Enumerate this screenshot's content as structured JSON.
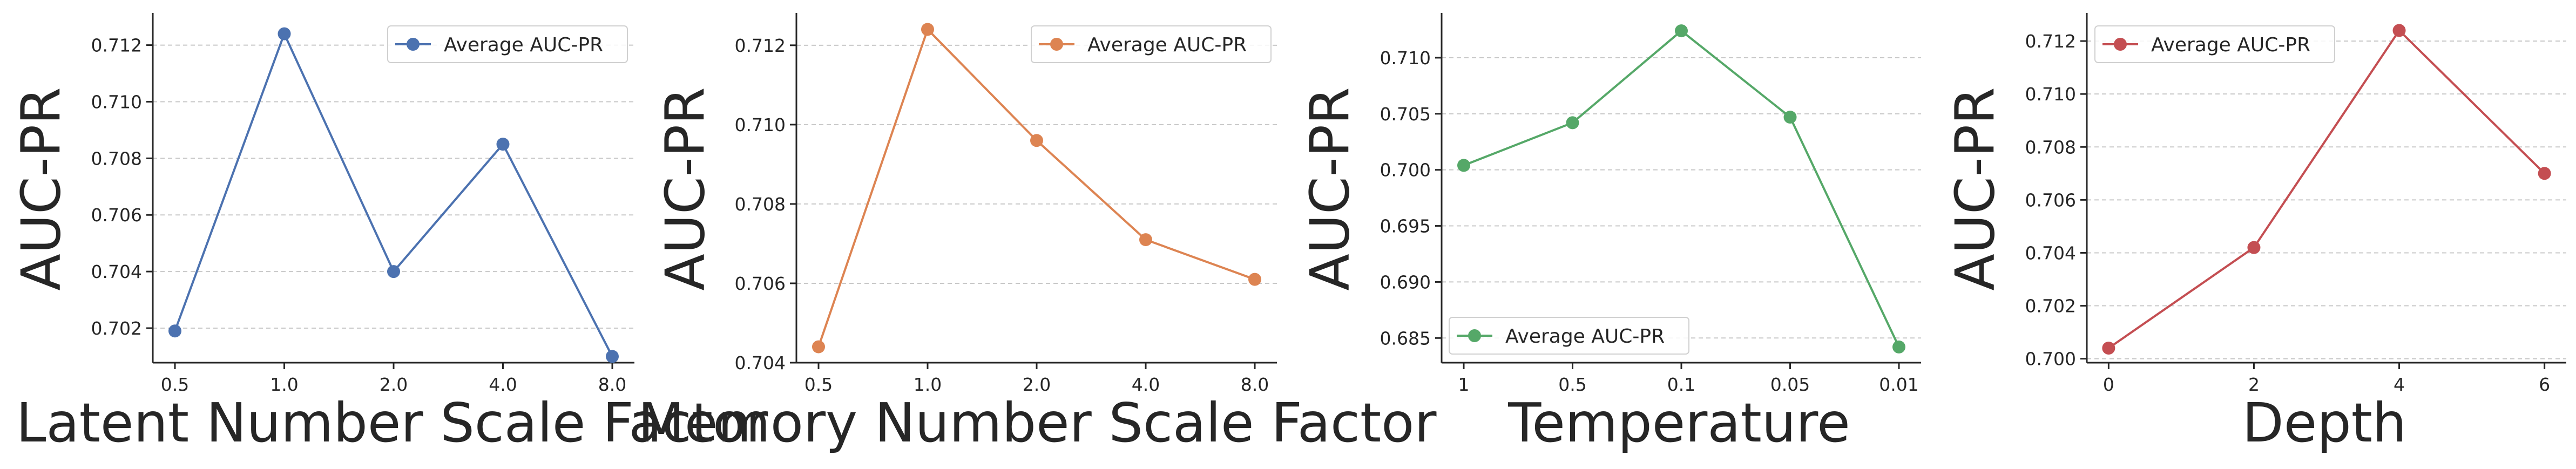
{
  "chart_data": [
    {
      "type": "line",
      "xlabel": "Latent Number Scale Factor",
      "ylabel": "AUC-PR",
      "categories": [
        "0.5",
        "1.0",
        "2.0",
        "4.0",
        "8.0"
      ],
      "series": [
        {
          "name": "Average AUC-PR",
          "values": [
            0.7019,
            0.7124,
            0.704,
            0.7085,
            0.701
          ],
          "color": "#4c72b0"
        }
      ],
      "yticks": [
        0.702,
        0.704,
        0.706,
        0.708,
        0.71,
        0.712
      ],
      "ytick_labels": [
        "0.702",
        "0.704",
        "0.706",
        "0.708",
        "0.710",
        "0.712"
      ],
      "ylim": [
        0.70078,
        0.71306
      ],
      "grid": "y-dashed",
      "legend": "top-right"
    },
    {
      "type": "line",
      "xlabel": "Memory Number Scale Factor",
      "ylabel": "AUC-PR",
      "categories": [
        "0.5",
        "1.0",
        "2.0",
        "4.0",
        "8.0"
      ],
      "series": [
        {
          "name": "Average AUC-PR",
          "values": [
            0.7044,
            0.7124,
            0.7096,
            0.7071,
            0.7061
          ],
          "color": "#dd8452"
        }
      ],
      "yticks": [
        0.704,
        0.706,
        0.708,
        0.71,
        0.712
      ],
      "ytick_labels": [
        "0.704",
        "0.706",
        "0.708",
        "0.710",
        "0.712"
      ],
      "ylim": [
        0.704,
        0.71276
      ],
      "grid": "y-dashed",
      "legend": "top-right"
    },
    {
      "type": "line",
      "xlabel": "Temperature",
      "ylabel": "AUC-PR",
      "categories": [
        "1",
        "0.5",
        "0.1",
        "0.05",
        "0.01"
      ],
      "series": [
        {
          "name": "Average AUC-PR",
          "values": [
            0.7004,
            0.7042,
            0.7124,
            0.7047,
            0.6842
          ],
          "color": "#55a868"
        }
      ],
      "yticks": [
        0.685,
        0.69,
        0.695,
        0.7,
        0.705,
        0.71
      ],
      "ytick_labels": [
        "0.685",
        "0.690",
        "0.695",
        "0.700",
        "0.705",
        "0.710"
      ],
      "ylim": [
        0.6828,
        0.7138
      ],
      "grid": "y-dashed",
      "legend": "bottom-left"
    },
    {
      "type": "line",
      "xlabel": "Depth",
      "ylabel": "AUC-PR",
      "x": [
        0,
        2,
        4,
        6
      ],
      "xticks": [
        0,
        2,
        4,
        6
      ],
      "xtick_labels": [
        "0",
        "2",
        "4",
        "6"
      ],
      "xlim": [
        -0.3,
        6.3
      ],
      "series": [
        {
          "name": "Average AUC-PR",
          "values": [
            0.7004,
            0.7042,
            0.7124,
            0.707
          ],
          "color": "#c44e52"
        }
      ],
      "yticks": [
        0.7,
        0.702,
        0.704,
        0.706,
        0.708,
        0.71,
        0.712
      ],
      "ytick_labels": [
        "0.700",
        "0.702",
        "0.704",
        "0.706",
        "0.708",
        "0.710",
        "0.712"
      ],
      "ylim": [
        0.69985,
        0.71298
      ],
      "grid": "y-dashed",
      "legend": "top-left"
    }
  ]
}
